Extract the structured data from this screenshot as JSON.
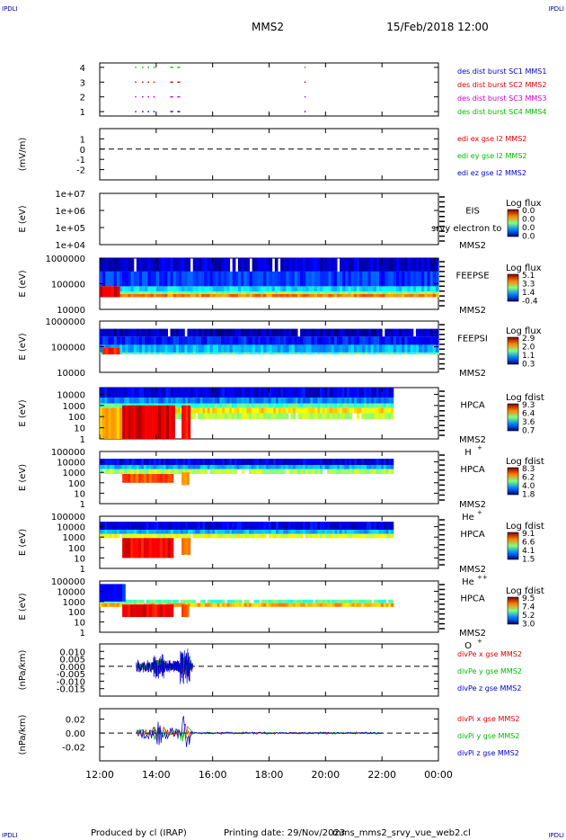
{
  "corner_mark": "IPDLI",
  "header": {
    "mission": "MMS2",
    "datetime": "15/Feb/2018 12:00"
  },
  "footer": {
    "produced_by": "Produced by cl (IRAP)",
    "printing_date": "Printing date: 29/Nov/2023",
    "filename": "mms_mms2_srvy_vue_web2.cl"
  },
  "x_ticks": [
    "12:00",
    "14:00",
    "16:00",
    "18:00",
    "20:00",
    "22:00",
    "00:00"
  ],
  "chart_data": [
    {
      "type": "scatter",
      "title": "",
      "ylabel": "",
      "ylim": [
        0.7,
        4.3
      ],
      "yticks": [
        "4",
        "3",
        "2",
        "1"
      ],
      "ytick_values": [
        4,
        3,
        2,
        1
      ],
      "legend": [
        {
          "text": "des dist burst SC1 MMS1",
          "color": "#0000cc"
        },
        {
          "text": "des dist burst SC2 MMS2",
          "color": "#dd0000"
        },
        {
          "text": "des dist burst SC3 MMS3",
          "color": "#cc00cc"
        },
        {
          "text": "des dist burst SC4 MMS4",
          "color": "#00bb00"
        }
      ],
      "series": [
        {
          "level": 4,
          "color": "#00bb00",
          "segments": [
            [
              13.25,
              13.3
            ],
            [
              13.5,
              13.55
            ],
            [
              13.7,
              13.75
            ],
            [
              13.9,
              13.95
            ],
            [
              14.5,
              14.6
            ],
            [
              14.75,
              14.85
            ],
            [
              19.25,
              19.28
            ]
          ]
        },
        {
          "level": 3,
          "color": "#dd0000",
          "segments": [
            [
              13.25,
              13.3
            ],
            [
              13.5,
              13.55
            ],
            [
              13.7,
              13.75
            ],
            [
              13.9,
              13.95
            ],
            [
              14.5,
              14.6
            ],
            [
              14.75,
              14.85
            ],
            [
              19.25,
              19.28
            ]
          ]
        },
        {
          "level": 2,
          "color": "#cc00cc",
          "segments": [
            [
              13.25,
              13.3
            ],
            [
              13.5,
              13.55
            ],
            [
              13.7,
              13.75
            ],
            [
              13.9,
              13.95
            ],
            [
              14.5,
              14.6
            ],
            [
              14.75,
              14.85
            ],
            [
              19.25,
              19.28
            ]
          ]
        },
        {
          "level": 1,
          "color": "#0000cc",
          "segments": [
            [
              13.25,
              13.3
            ],
            [
              13.5,
              13.55
            ],
            [
              13.7,
              13.75
            ],
            [
              13.9,
              13.95
            ],
            [
              14.5,
              14.6
            ],
            [
              14.75,
              14.85
            ],
            [
              19.25,
              19.28
            ]
          ]
        }
      ]
    },
    {
      "type": "line",
      "ylabel": "(mV/m)",
      "ylim": [
        -3,
        2
      ],
      "yticks": [
        "1",
        "0",
        "-1",
        "-2"
      ],
      "ytick_values": [
        1,
        0,
        -1,
        -2
      ],
      "zero_line": true,
      "legend": [
        {
          "text": "edi ex gse l2 MMS2",
          "color": "#dd0000"
        },
        {
          "text": "edi ey gse l2 MMS2",
          "color": "#00bb00"
        },
        {
          "text": "edi ez gse l2 MMS2",
          "color": "#0000cc"
        }
      ]
    },
    {
      "type": "heatmap",
      "ylabel": "E (eV)",
      "ylog": true,
      "ylim": [
        10000,
        10000000
      ],
      "yticks": [
        "1e+07",
        "1e+06",
        "1e+05",
        "1e+04"
      ],
      "ytick_values": [
        10000000,
        1000000,
        100000,
        10000
      ],
      "side_label": [
        "EIS",
        "MMS2"
      ],
      "overlay_text": "srvy electron to",
      "colorbar": {
        "title": "Log flux",
        "ticks": [
          "0.0",
          "0.0",
          "0.0",
          "0.0"
        ]
      },
      "data_end": null
    },
    {
      "type": "heatmap",
      "ylabel": "E (eV)",
      "ylog": true,
      "ylim": [
        10000,
        1000000
      ],
      "yticks": [
        "1000000",
        "100000",
        "10000"
      ],
      "ytick_values": [
        1000000,
        100000,
        10000
      ],
      "side_label": [
        "FEEPSE",
        "MMS2"
      ],
      "colorbar": {
        "title": "Log flux",
        "ticks": [
          "5.1",
          "3.3",
          "1.4",
          "-0.4"
        ]
      },
      "data_end": 24,
      "bands": [
        {
          "from": 30000,
          "to": 40000,
          "level": 0.75
        },
        {
          "from": 40000,
          "to": 50000,
          "level": 0.5
        },
        {
          "from": 50000,
          "to": 80000,
          "level": 0.35
        },
        {
          "from": 80000,
          "to": 300000,
          "level": 0.18
        },
        {
          "from": 300000,
          "to": 1000000,
          "level": 0.08
        }
      ],
      "hot_patches": [
        {
          "t0": 12.0,
          "t1": 12.7,
          "from": 30000,
          "to": 80000,
          "level": 0.9
        }
      ]
    },
    {
      "type": "heatmap",
      "ylabel": "E (eV)",
      "ylog": true,
      "ylim": [
        10000,
        1000000
      ],
      "yticks": [
        "1000000",
        "100000",
        "10000"
      ],
      "ytick_values": [
        1000000,
        100000,
        10000
      ],
      "side_label": [
        "FEEPSI",
        "MMS2"
      ],
      "colorbar": {
        "title": "Log flux",
        "ticks": [
          "2.9",
          "2.0",
          "1.1",
          "0.3"
        ]
      },
      "data_end": 24,
      "bands": [
        {
          "from": 50000,
          "to": 60000,
          "level": 0.45
        },
        {
          "from": 60000,
          "to": 120000,
          "level": 0.3
        },
        {
          "from": 120000,
          "to": 250000,
          "level": 0.15
        },
        {
          "from": 250000,
          "to": 500000,
          "level": 0.05
        }
      ],
      "hot_patches": [
        {
          "t0": 12.1,
          "t1": 12.7,
          "from": 50000,
          "to": 90000,
          "level": 0.85
        }
      ]
    },
    {
      "type": "heatmap",
      "ylabel": "E (eV)",
      "ylog": true,
      "ylim": [
        1,
        40000
      ],
      "yticks": [
        "10000",
        "1000",
        "100",
        "10",
        "1"
      ],
      "ytick_values": [
        10000,
        1000,
        100,
        10,
        1
      ],
      "side_label": [
        "HPCA",
        "MMS2",
        "H",
        "+"
      ],
      "colorbar": {
        "title": "Log fdist",
        "ticks": [
          "9.3",
          "6.4",
          "3.6",
          "0.7"
        ]
      },
      "data_end": 22.4,
      "bands": [
        {
          "from": 5000,
          "to": 40000,
          "level": 0.1
        },
        {
          "from": 1500,
          "to": 5000,
          "level": 0.25
        },
        {
          "from": 600,
          "to": 1500,
          "level": 0.45
        },
        {
          "from": 200,
          "to": 600,
          "level": 0.65
        },
        {
          "from": 60,
          "to": 200,
          "level": 0.55
        }
      ],
      "hot_patches": [
        {
          "t0": 12.0,
          "t1": 12.9,
          "from": 1,
          "to": 600,
          "level": 0.7
        },
        {
          "t0": 12.8,
          "t1": 14.65,
          "from": 1,
          "to": 1000,
          "level": 0.92
        },
        {
          "t0": 14.9,
          "t1": 15.2,
          "from": 1,
          "to": 1000,
          "level": 0.85
        }
      ]
    },
    {
      "type": "heatmap",
      "ylabel": "E (eV)",
      "ylog": true,
      "ylim": [
        1,
        100000
      ],
      "yticks": [
        "100000",
        "10000",
        "1000",
        "100",
        "10",
        "1"
      ],
      "ytick_values": [
        100000,
        10000,
        1000,
        100,
        10,
        1
      ],
      "side_label": [
        "HPCA",
        "MMS2",
        "He",
        "+"
      ],
      "colorbar": {
        "title": "Log fdist",
        "ticks": [
          "8.3",
          "6.2",
          "4.0",
          "1.8"
        ]
      },
      "data_end": 22.4,
      "bands": [
        {
          "from": 5000,
          "to": 20000,
          "level": 0.1
        },
        {
          "from": 2000,
          "to": 5000,
          "level": 0.3
        },
        {
          "from": 700,
          "to": 2000,
          "level": 0.55
        }
      ],
      "hot_patches": [
        {
          "t0": 12.8,
          "t1": 14.6,
          "from": 100,
          "to": 700,
          "level": 0.8
        },
        {
          "t0": 14.9,
          "t1": 15.15,
          "from": 60,
          "to": 1000,
          "level": 0.7
        }
      ]
    },
    {
      "type": "heatmap",
      "ylabel": "E (eV)",
      "ylog": true,
      "ylim": [
        1,
        100000
      ],
      "yticks": [
        "100000",
        "10000",
        "1000",
        "100",
        "10",
        "1"
      ],
      "ytick_values": [
        100000,
        10000,
        1000,
        100,
        10,
        1
      ],
      "side_label": [
        "HPCA",
        "MMS2",
        "He",
        "++"
      ],
      "colorbar": {
        "title": "Log fdist",
        "ticks": [
          "9.1",
          "6.6",
          "4.1",
          "1.5"
        ]
      },
      "data_end": 22.4,
      "bands": [
        {
          "from": 5000,
          "to": 30000,
          "level": 0.1
        },
        {
          "from": 2000,
          "to": 5000,
          "level": 0.3
        },
        {
          "from": 800,
          "to": 2000,
          "level": 0.6
        }
      ],
      "hot_patches": [
        {
          "t0": 12.8,
          "t1": 14.6,
          "from": 10,
          "to": 800,
          "level": 0.88
        },
        {
          "t0": 14.9,
          "t1": 15.2,
          "from": 20,
          "to": 800,
          "level": 0.75
        }
      ]
    },
    {
      "type": "heatmap",
      "ylabel": "E (eV)",
      "ylog": true,
      "ylim": [
        1,
        100000
      ],
      "yticks": [
        "100000",
        "10000",
        "1000",
        "100",
        "10",
        "1"
      ],
      "ytick_values": [
        100000,
        10000,
        1000,
        100,
        10,
        1
      ],
      "side_label": [
        "HPCA",
        "MMS2",
        "O",
        "+"
      ],
      "colorbar": {
        "title": "Log fdist",
        "ticks": [
          "9.5",
          "7.4",
          "5.2",
          "3.0"
        ]
      },
      "data_end": 22.4,
      "bands": [
        {
          "from": 300,
          "to": 700,
          "level": 0.7
        },
        {
          "from": 700,
          "to": 1500,
          "level": 0.45
        }
      ],
      "hot_patches": [
        {
          "t0": 12.0,
          "t1": 12.9,
          "from": 1000,
          "to": 50000,
          "level": 0.15
        },
        {
          "t0": 12.8,
          "t1": 14.6,
          "from": 30,
          "to": 500,
          "level": 0.88
        },
        {
          "t0": 14.9,
          "t1": 15.15,
          "from": 30,
          "to": 500,
          "level": 0.8
        }
      ]
    },
    {
      "type": "line",
      "ylabel": "(nPa/km)",
      "ylim": [
        -0.02,
        0.015
      ],
      "yticks": [
        "0.010",
        "0.005",
        "0.000",
        "-0.005",
        "-0.010",
        "-0.015"
      ],
      "ytick_values": [
        0.01,
        0.005,
        0.0,
        -0.005,
        -0.01,
        -0.015
      ],
      "zero_line": true,
      "legend": [
        {
          "text": "divPe x gse MMS2",
          "color": "#dd0000"
        },
        {
          "text": "divPe y gse MMS2",
          "color": "#00bb00"
        },
        {
          "text": "divPe z gse MMS2",
          "color": "#0000cc"
        }
      ],
      "active": [
        13.3,
        15.3
      ],
      "amplitude": 0.012
    },
    {
      "type": "line",
      "ylabel": "(nPa/km)",
      "ylim": [
        -0.04,
        0.035
      ],
      "yticks": [
        "0.02",
        "0.00",
        "-0.02"
      ],
      "ytick_values": [
        0.02,
        0.0,
        -0.02
      ],
      "zero_line": true,
      "legend": [
        {
          "text": "divPi x gse MMS2",
          "color": "#dd0000"
        },
        {
          "text": "divPi y gse MMS2",
          "color": "#00bb00"
        },
        {
          "text": "divPi z gse MMS2",
          "color": "#0000cc"
        }
      ],
      "active": [
        13.3,
        22.0
      ],
      "amplitude": 0.025
    }
  ]
}
